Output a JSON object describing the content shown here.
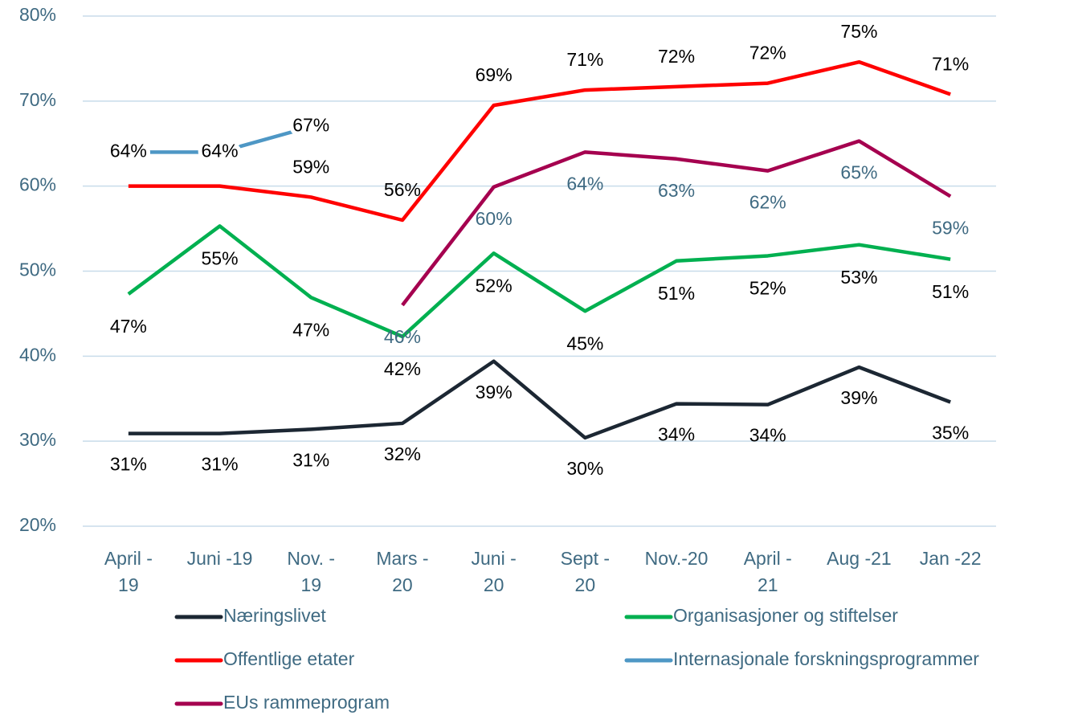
{
  "chart_data": {
    "type": "line",
    "categories": [
      "April - 19",
      "Juni -19",
      "Nov. - 19",
      "Mars - 20",
      "Juni - 20",
      "Sept - 20",
      "Nov.-20",
      "April - 21",
      "Aug -21",
      "Jan -22"
    ],
    "series": [
      {
        "name": "Næringslivet",
        "color": "#1c2733",
        "label_color": "#000000",
        "values": [
          30.9,
          30.9,
          31.4,
          32.1,
          39.4,
          30.4,
          34.4,
          34.3,
          38.7,
          34.6
        ],
        "value_labels": [
          "31%",
          "31%",
          "31%",
          "32%",
          "39%",
          "30%",
          "34%",
          "34%",
          "39%",
          "35%"
        ]
      },
      {
        "name": "Organisasjoner og stiftelser",
        "color": "#00b050",
        "label_color": "#000000",
        "values": [
          47.3,
          55.3,
          46.9,
          42.3,
          52.1,
          45.3,
          51.2,
          51.8,
          53.1,
          51.4
        ],
        "value_labels": [
          "47%",
          "55%",
          "47%",
          "42%",
          "52%",
          "45%",
          "51%",
          "52%",
          "53%",
          "51%"
        ]
      },
      {
        "name": "Offentlige etater",
        "color": "#ff0000",
        "label_color": "#000000",
        "values": [
          60.0,
          60.0,
          58.7,
          56.0,
          69.5,
          71.3,
          71.7,
          72.1,
          74.6,
          70.8
        ],
        "value_labels": [
          null,
          null,
          "59%",
          "56%",
          "69%",
          "71%",
          "72%",
          "72%",
          "75%",
          "71%"
        ]
      },
      {
        "name": "Internasjonale forskningsprogrammer",
        "color": "#4e97c5",
        "label_color": "#000000",
        "values": [
          64,
          64,
          67,
          null,
          null,
          null,
          null,
          null,
          null,
          null
        ],
        "value_labels": [
          "64%",
          "64%",
          "67%",
          null,
          null,
          null,
          null,
          null,
          null,
          null
        ]
      },
      {
        "name": "EUs rammeprogram",
        "color": "#a5004f",
        "label_color": "#3f6a82",
        "values": [
          null,
          null,
          null,
          46.0,
          59.9,
          64.0,
          63.2,
          61.8,
          65.3,
          58.8
        ],
        "value_labels": [
          null,
          null,
          null,
          "46%",
          "60%",
          "64%",
          "63%",
          "62%",
          "65%",
          "59%"
        ]
      }
    ],
    "ylim": [
      20,
      80
    ],
    "yticks": [
      {
        "value": 20,
        "label": "20%"
      },
      {
        "value": 30,
        "label": "30%"
      },
      {
        "value": 40,
        "label": "40%"
      },
      {
        "value": 50,
        "label": "50%"
      },
      {
        "value": 60,
        "label": "60%"
      },
      {
        "value": 70,
        "label": "70%"
      },
      {
        "value": 80,
        "label": "80%"
      }
    ],
    "grid": true,
    "legend": "bottom"
  }
}
